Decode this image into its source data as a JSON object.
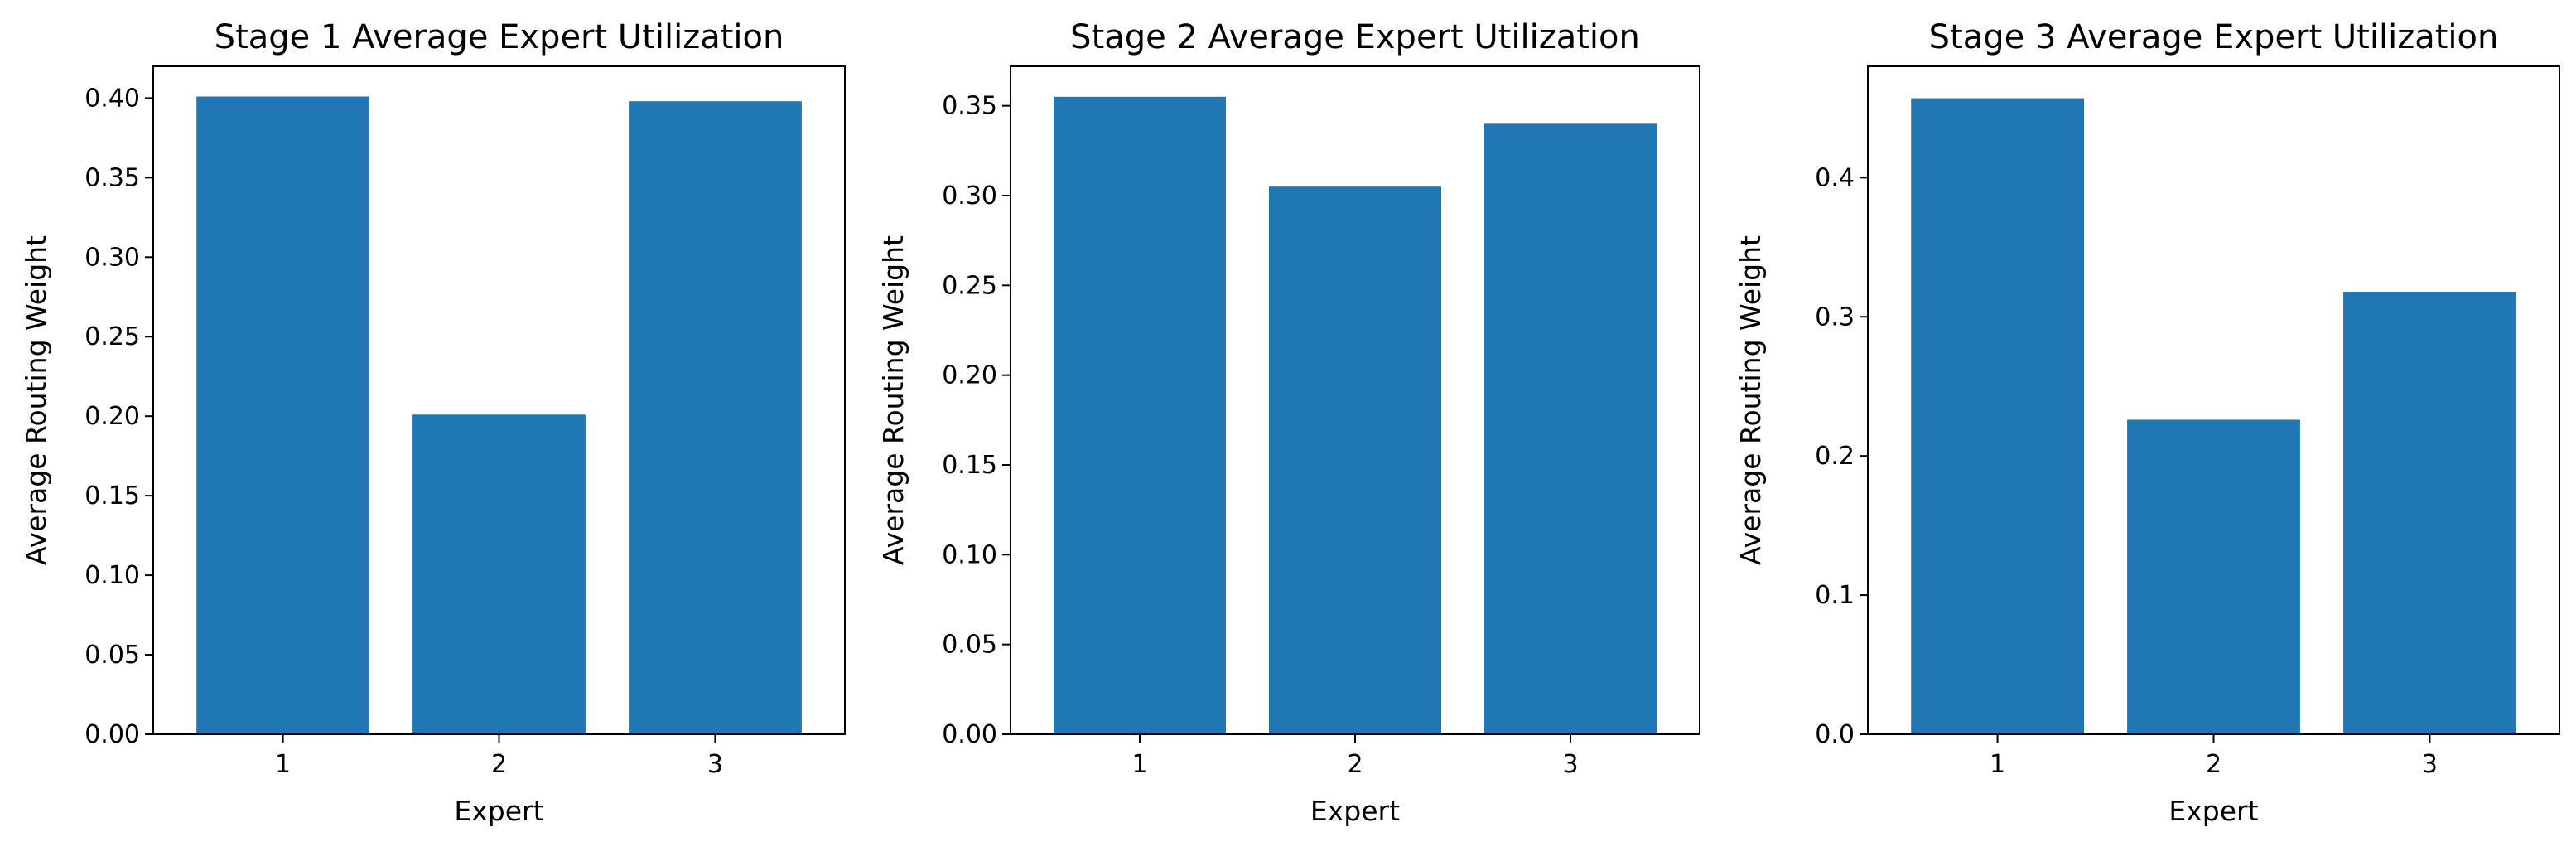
{
  "chart_data": [
    {
      "type": "bar",
      "title": "Stage 1 Average Expert Utilization",
      "xlabel": "Expert",
      "ylabel": "Average Routing Weight",
      "categories": [
        "1",
        "2",
        "3"
      ],
      "values": [
        0.401,
        0.201,
        0.398
      ],
      "ylim": [
        0,
        0.42
      ],
      "yticks": [
        0,
        0.05,
        0.1,
        0.15,
        0.2,
        0.25,
        0.3,
        0.35,
        0.4
      ],
      "ytick_labels": [
        "0.00",
        "0.05",
        "0.10",
        "0.15",
        "0.20",
        "0.25",
        "0.30",
        "0.35",
        "0.40"
      ],
      "color": "#1f77b4",
      "grid": false
    },
    {
      "type": "bar",
      "title": "Stage 2 Average Expert Utilization",
      "xlabel": "Expert",
      "ylabel": "Average Routing Weight",
      "categories": [
        "1",
        "2",
        "3"
      ],
      "values": [
        0.355,
        0.305,
        0.34
      ],
      "ylim": [
        0,
        0.372
      ],
      "yticks": [
        0,
        0.05,
        0.1,
        0.15,
        0.2,
        0.25,
        0.3,
        0.35
      ],
      "ytick_labels": [
        "0.00",
        "0.05",
        "0.10",
        "0.15",
        "0.20",
        "0.25",
        "0.30",
        "0.35"
      ],
      "color": "#1f77b4",
      "grid": false
    },
    {
      "type": "bar",
      "title": "Stage 3 Average Expert Utilization",
      "xlabel": "Expert",
      "ylabel": "Average Routing Weight",
      "categories": [
        "1",
        "2",
        "3"
      ],
      "values": [
        0.457,
        0.226,
        0.318
      ],
      "ylim": [
        0,
        0.48
      ],
      "yticks": [
        0,
        0.1,
        0.2,
        0.3,
        0.4
      ],
      "ytick_labels": [
        "0.0",
        "0.1",
        "0.2",
        "0.3",
        "0.4"
      ],
      "color": "#1f77b4",
      "grid": false
    }
  ]
}
